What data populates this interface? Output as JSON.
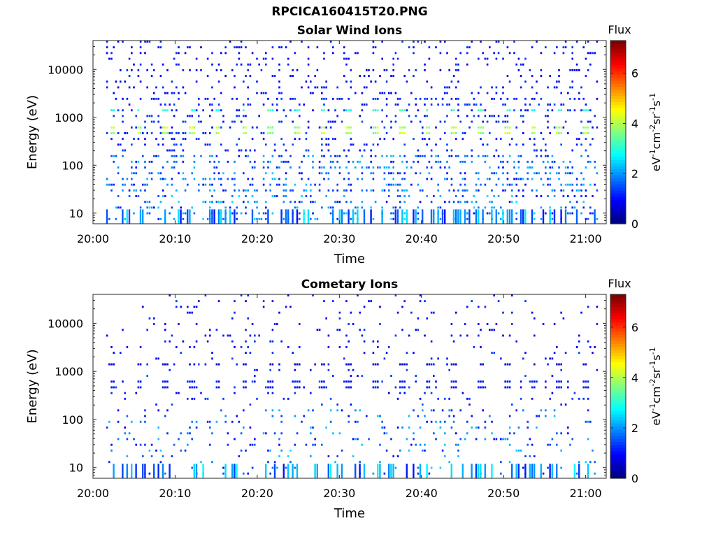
{
  "figure": {
    "title": "RPCICA160415T20.PNG"
  },
  "chart_data": [
    {
      "type": "heatmap",
      "title": "Solar Wind Ions",
      "xlabel": "Time",
      "ylabel": "Energy (eV)",
      "x_ticks": [
        "20:00",
        "20:10",
        "20:20",
        "20:30",
        "20:40",
        "20:50",
        "21:00"
      ],
      "x_range_min": [
        0,
        62.5
      ],
      "y_ticks": [
        10,
        100,
        1000,
        10000
      ],
      "ylim": [
        6,
        40000
      ],
      "y_scale": "log",
      "colorbar": {
        "label": "Flux",
        "unit_label": "eV",
        "ticks": [
          0,
          2,
          4,
          6
        ],
        "range": [
          0,
          7.3
        ],
        "colormap": "jet"
      },
      "sweep_period_min": 3.2,
      "sweep_start_min": 2.2,
      "peak_energy_ev": 550,
      "peak_flux": 4.0,
      "secondary_energy_ev": 1400,
      "secondary_flux": 3.0
    },
    {
      "type": "heatmap",
      "title": "Cometary Ions",
      "xlabel": "Time",
      "ylabel": "Energy (eV)",
      "x_ticks": [
        "20:00",
        "20:10",
        "20:20",
        "20:30",
        "20:40",
        "20:50",
        "21:00"
      ],
      "x_range_min": [
        0,
        62.5
      ],
      "y_ticks": [
        10,
        100,
        1000,
        10000
      ],
      "ylim": [
        6,
        40000
      ],
      "y_scale": "log",
      "colorbar": {
        "label": "Flux",
        "unit_label": "eV",
        "ticks": [
          0,
          2,
          4,
          6
        ],
        "range": [
          0,
          7.3
        ],
        "colormap": "jet"
      },
      "sweep_period_min": 3.2,
      "sweep_start_min": 2.2,
      "peak_energy_ev": 550,
      "peak_flux": 1.0,
      "secondary_energy_ev": 1400,
      "secondary_flux": 0.6
    }
  ]
}
